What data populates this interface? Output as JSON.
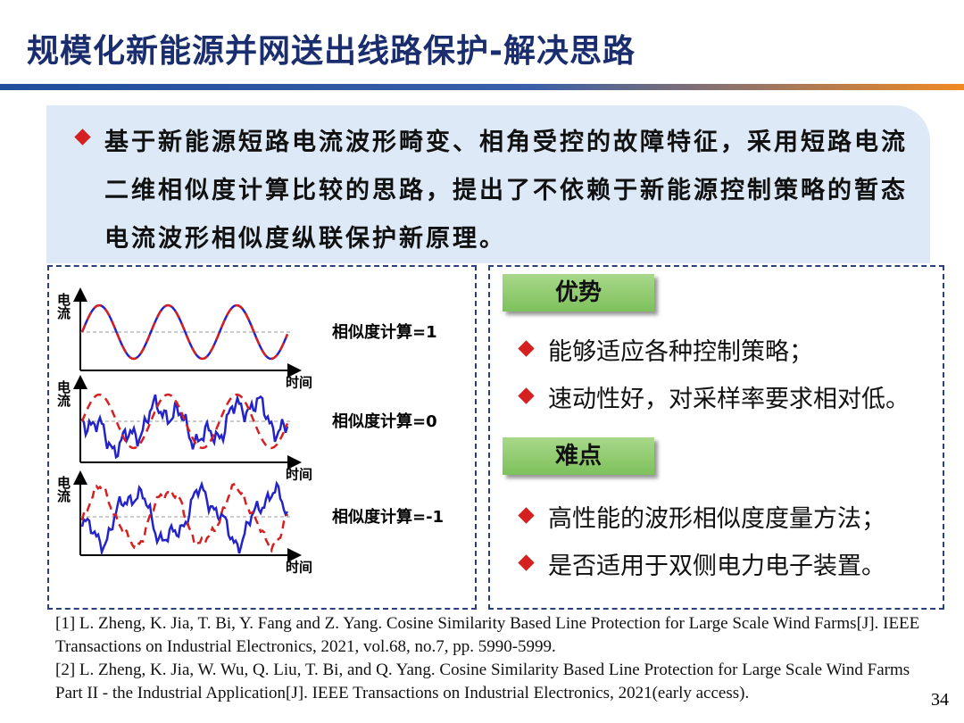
{
  "header": {
    "title": "规模化新能源并网送出线路保护-解决思路"
  },
  "summary": {
    "text": "基于新能源短路电流波形畸变、相角受控的故障特征，采用短路电流二维相似度计算比较的思路，提出了不依赖于新能源控制策略的暂态电流波形相似度纵联保护新原理。"
  },
  "figure": {
    "y_label": "电流",
    "x_label": "时间",
    "panels": [
      {
        "label": "相似度计算=1"
      },
      {
        "label": "相似度计算=0"
      },
      {
        "label": "相似度计算=-1"
      }
    ]
  },
  "advantages": {
    "title": "优势",
    "items": [
      "能够适应各种控制策略；",
      "速动性好，对采样率要求相对低。"
    ]
  },
  "difficulties": {
    "title": "难点",
    "items": [
      "高性能的波形相似度度量方法；",
      "是否适用于双侧电力电子装置。"
    ]
  },
  "references": [
    "[1] L. Zheng, K. Jia, T. Bi, Y. Fang and Z. Yang. Cosine Similarity Based Line Protection for Large Scale Wind Farms[J]. IEEE Transactions on Industrial Electronics, 2021, vol.68, no.7, pp. 5990-5999.",
    "[2] L. Zheng, K. Jia, W. Wu, Q. Liu, T. Bi, and Q. Yang. Cosine Similarity Based Line Protection for Large Scale Wind Farms Part II - the Industrial Application[J]. IEEE Transactions on Industrial Electronics,  2021(early access)."
  ],
  "page_number": "34"
}
